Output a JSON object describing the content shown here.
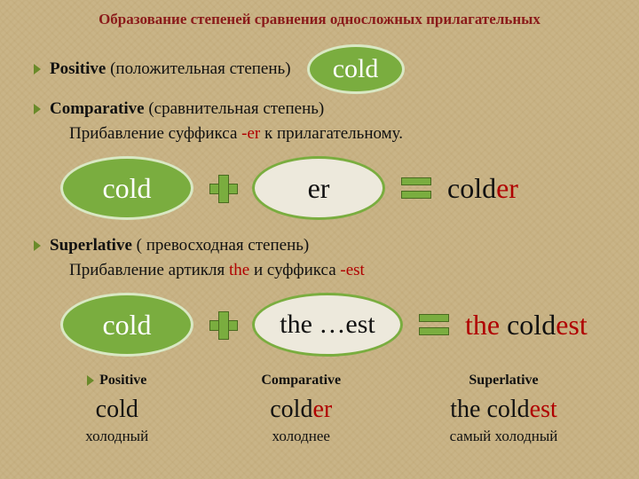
{
  "colors": {
    "bg": "#c9b487",
    "green": "#7aad3f",
    "green_border": "#d9e8c4",
    "white_oval_bg": "#ede9dc",
    "title": "#8a1a1a",
    "red": "#b00000",
    "text": "#111111"
  },
  "title": "Образование степеней сравнения односложных прилагательных",
  "positive": {
    "label_bold": "Positive",
    "label_rest": " (положительная степень)",
    "word": "cold"
  },
  "comparative": {
    "label_bold": "Comparative",
    "label_rest": " (сравнительная степень)",
    "rule_pre": "Прибавление суффикса ",
    "rule_suffix": "-er",
    "rule_post": " к прилагательному.",
    "lhs": "cold",
    "add": "er",
    "result_base": "cold",
    "result_suffix": "er"
  },
  "superlative": {
    "label_bold": "Superlative",
    "label_rest": " ( превосходная степень)",
    "rule_pre": "Прибавление артикля ",
    "rule_article": "the",
    "rule_mid": " и суффикса ",
    "rule_suffix": "-est",
    "lhs": "cold",
    "add": "the …est",
    "result_article": "the ",
    "result_base": "cold",
    "result_suffix": "est"
  },
  "table": {
    "headers": [
      "Positive",
      "Comparative",
      "Superlative"
    ],
    "row1": {
      "c1": "cold",
      "c2_base": "cold",
      "c2_suffix": "er",
      "c3_article": "the ",
      "c3_base": "cold",
      "c3_suffix": "est"
    },
    "row2": [
      "холодный",
      "холоднее",
      "самый холодный"
    ]
  }
}
